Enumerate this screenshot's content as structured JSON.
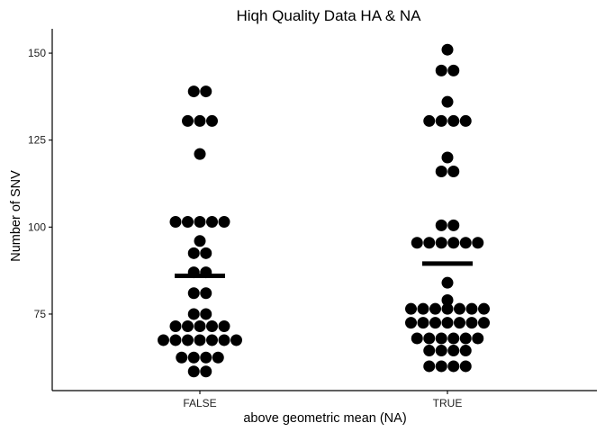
{
  "chart_data": {
    "type": "scatter",
    "subtype": "dot-plot",
    "title": "Hiqh Quality Data HA & NA",
    "xlabel": "above geometric mean (NA)",
    "ylabel": "Number of SNV",
    "categories": [
      "FALSE",
      "TRUE"
    ],
    "ylim": [
      53,
      157
    ],
    "yticks": [
      75,
      100,
      125,
      150
    ],
    "grid": false,
    "legend": "none",
    "means": [
      86,
      89.5
    ],
    "groups": [
      {
        "category": "FALSE",
        "rows": [
          {
            "y": 139,
            "n": 2
          },
          {
            "y": 130.5,
            "n": 3
          },
          {
            "y": 121,
            "n": 1
          },
          {
            "y": 101.5,
            "n": 5
          },
          {
            "y": 96,
            "n": 1
          },
          {
            "y": 92.5,
            "n": 2
          },
          {
            "y": 87,
            "n": 2
          },
          {
            "y": 81,
            "n": 2
          },
          {
            "y": 75,
            "n": 2
          },
          {
            "y": 71.5,
            "n": 5
          },
          {
            "y": 67.5,
            "n": 7
          },
          {
            "y": 62.5,
            "n": 4
          },
          {
            "y": 58.5,
            "n": 2
          }
        ]
      },
      {
        "category": "TRUE",
        "rows": [
          {
            "y": 151,
            "n": 1
          },
          {
            "y": 145,
            "n": 2
          },
          {
            "y": 136,
            "n": 1
          },
          {
            "y": 130.5,
            "n": 4
          },
          {
            "y": 120,
            "n": 1
          },
          {
            "y": 116,
            "n": 2
          },
          {
            "y": 100.5,
            "n": 2
          },
          {
            "y": 95.5,
            "n": 6
          },
          {
            "y": 84,
            "n": 1
          },
          {
            "y": 79,
            "n": 1
          },
          {
            "y": 76.5,
            "n": 7
          },
          {
            "y": 72.5,
            "n": 7
          },
          {
            "y": 68,
            "n": 6
          },
          {
            "y": 64.5,
            "n": 4
          },
          {
            "y": 60,
            "n": 4
          }
        ]
      }
    ]
  }
}
